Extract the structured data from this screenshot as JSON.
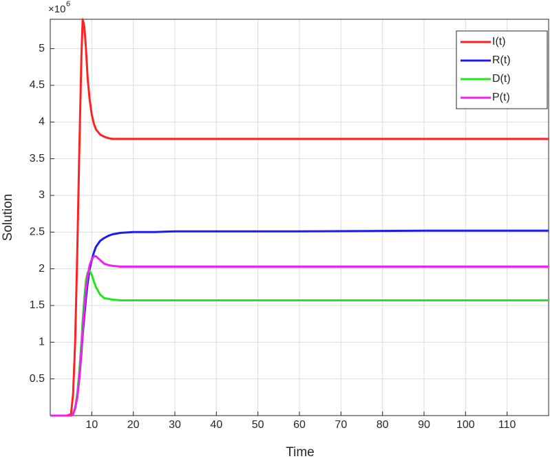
{
  "chart_data": {
    "type": "line",
    "x_label": "Time",
    "y_label": "Solution",
    "y_multiplier": "×10",
    "y_multiplier_exponent": "6",
    "x": [
      0,
      4,
      5,
      5.5,
      6,
      6.5,
      7,
      7.5,
      7.8,
      8.2,
      8.6,
      9,
      9.5,
      10,
      10.5,
      11,
      12,
      13,
      14,
      15,
      17,
      20,
      25,
      30,
      40,
      60,
      90,
      120
    ],
    "series": [
      {
        "name": "I(t)",
        "color": "#ff2020",
        "values": [
          0,
          0,
          0.02,
          0.3,
          1.0,
          2.2,
          3.6,
          4.9,
          5.4,
          5.3,
          5.0,
          4.6,
          4.3,
          4.1,
          3.98,
          3.9,
          3.83,
          3.8,
          3.78,
          3.77,
          3.77,
          3.77,
          3.77,
          3.77,
          3.77,
          3.77,
          3.77,
          3.77
        ]
      },
      {
        "name": "R(t)",
        "color": "#1c1cf0",
        "values": [
          0,
          0,
          0,
          0.02,
          0.1,
          0.25,
          0.5,
          0.85,
          1.1,
          1.35,
          1.6,
          1.8,
          2.0,
          2.12,
          2.22,
          2.3,
          2.38,
          2.42,
          2.45,
          2.47,
          2.49,
          2.5,
          2.5,
          2.51,
          2.51,
          2.51,
          2.52,
          2.52
        ]
      },
      {
        "name": "D(t)",
        "color": "#20e620",
        "values": [
          0,
          0,
          0,
          0.02,
          0.1,
          0.3,
          0.6,
          1.0,
          1.3,
          1.6,
          1.85,
          1.95,
          1.97,
          1.92,
          1.83,
          1.75,
          1.65,
          1.6,
          1.59,
          1.58,
          1.57,
          1.57,
          1.57,
          1.57,
          1.57,
          1.57,
          1.57,
          1.57
        ]
      },
      {
        "name": "P(t)",
        "color": "#f020f0",
        "values": [
          0,
          0,
          0,
          0.02,
          0.1,
          0.25,
          0.5,
          0.9,
          1.15,
          1.45,
          1.7,
          1.9,
          2.05,
          2.13,
          2.17,
          2.17,
          2.12,
          2.07,
          2.05,
          2.04,
          2.03,
          2.03,
          2.03,
          2.03,
          2.03,
          2.03,
          2.03,
          2.03
        ]
      }
    ],
    "xlim": [
      0,
      120
    ],
    "xticks": [
      10,
      20,
      30,
      40,
      50,
      60,
      70,
      80,
      90,
      100,
      110
    ],
    "ylim": [
      0,
      5.4
    ],
    "yticks": [
      0.5,
      1,
      1.5,
      2,
      2.5,
      3,
      3.5,
      4,
      4.5,
      5
    ],
    "grid": true,
    "legend": "top-right"
  }
}
